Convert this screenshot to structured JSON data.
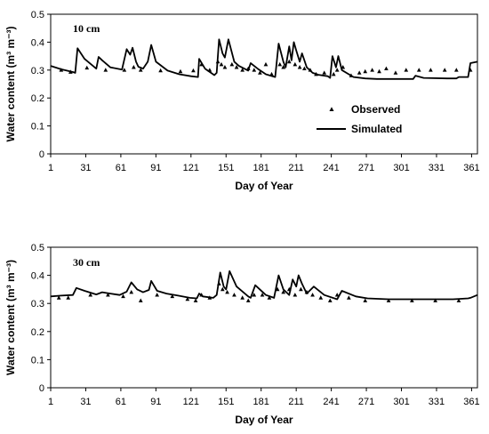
{
  "chart_data": [
    {
      "type": "line",
      "panel_label": "10 cm",
      "xlabel": "Day of Year",
      "ylabel": "Water content (m³ m⁻³)",
      "xlim": [
        1,
        366
      ],
      "ylim": [
        0,
        0.5
      ],
      "xticks": [
        1,
        31,
        61,
        91,
        121,
        151,
        181,
        211,
        241,
        271,
        301,
        331,
        361
      ],
      "xtick_labels": [
        "1",
        "31",
        "61",
        "91",
        "121",
        "151",
        "181",
        "211",
        "241",
        "271",
        "301",
        "331",
        "361"
      ],
      "yticks": [
        0,
        0.1,
        0.2,
        0.3,
        0.4,
        0.5
      ],
      "ytick_labels": [
        "0",
        "0.1",
        "0.2",
        "0.3",
        "0.4",
        "0.5"
      ],
      "legend": {
        "position": "inside-right",
        "entries": [
          {
            "label": "Observed",
            "marker": "triangle"
          },
          {
            "label": "Simulated",
            "marker": "line"
          }
        ]
      },
      "series": [
        {
          "name": "Simulated",
          "style": "line",
          "color": "#000000",
          "x": [
            1,
            10,
            20,
            22,
            24,
            30,
            40,
            42,
            45,
            52,
            62,
            66,
            69,
            71,
            74,
            76,
            80,
            84,
            87,
            91,
            101,
            111,
            121,
            127,
            128,
            133,
            141,
            143,
            145,
            148,
            150,
            153,
            158,
            162,
            170,
            172,
            178,
            185,
            193,
            196,
            200,
            202,
            205,
            207,
            209,
            211,
            214,
            216,
            220,
            225,
            230,
            238,
            240,
            242,
            245,
            247,
            250,
            256,
            260,
            270,
            280,
            290,
            300,
            311,
            313,
            320,
            340,
            348,
            350,
            358,
            360,
            366
          ],
          "y": [
            0.315,
            0.303,
            0.293,
            0.29,
            0.378,
            0.34,
            0.305,
            0.347,
            0.335,
            0.31,
            0.302,
            0.375,
            0.355,
            0.38,
            0.33,
            0.312,
            0.305,
            0.33,
            0.39,
            0.33,
            0.298,
            0.285,
            0.278,
            0.275,
            0.34,
            0.305,
            0.282,
            0.29,
            0.41,
            0.36,
            0.345,
            0.41,
            0.33,
            0.315,
            0.298,
            0.325,
            0.305,
            0.285,
            0.275,
            0.395,
            0.33,
            0.31,
            0.385,
            0.335,
            0.4,
            0.37,
            0.33,
            0.36,
            0.31,
            0.29,
            0.283,
            0.278,
            0.272,
            0.35,
            0.31,
            0.35,
            0.3,
            0.285,
            0.275,
            0.27,
            0.268,
            0.268,
            0.268,
            0.268,
            0.28,
            0.272,
            0.27,
            0.27,
            0.275,
            0.275,
            0.325,
            0.33
          ]
        },
        {
          "name": "Observed",
          "style": "triangle",
          "color": "#000000",
          "x": [
            10,
            18,
            32,
            48,
            64,
            72,
            78,
            95,
            112,
            123,
            130,
            137,
            144,
            147,
            150,
            156,
            160,
            165,
            170,
            175,
            180,
            185,
            190,
            197,
            200,
            205,
            210,
            214,
            218,
            223,
            228,
            235,
            243,
            246,
            251,
            258,
            265,
            270,
            276,
            282,
            288,
            296,
            305,
            316,
            326,
            338,
            348,
            360
          ],
          "y": [
            0.3,
            0.293,
            0.308,
            0.3,
            0.3,
            0.31,
            0.3,
            0.298,
            0.295,
            0.298,
            0.32,
            0.3,
            0.33,
            0.32,
            0.31,
            0.32,
            0.31,
            0.3,
            0.305,
            0.3,
            0.29,
            0.32,
            0.285,
            0.32,
            0.31,
            0.33,
            0.32,
            0.31,
            0.305,
            0.3,
            0.285,
            0.29,
            0.285,
            0.3,
            0.31,
            0.28,
            0.29,
            0.295,
            0.3,
            0.295,
            0.305,
            0.29,
            0.3,
            0.3,
            0.3,
            0.3,
            0.3,
            0.3
          ]
        }
      ]
    },
    {
      "type": "line",
      "panel_label": "30 cm",
      "xlabel": "Day of Year",
      "ylabel": "Water content (m³ m⁻³)",
      "xlim": [
        1,
        366
      ],
      "ylim": [
        0,
        0.5
      ],
      "xticks": [
        1,
        31,
        61,
        91,
        121,
        151,
        181,
        211,
        241,
        271,
        301,
        331,
        361
      ],
      "xtick_labels": [
        "1",
        "31",
        "61",
        "91",
        "121",
        "151",
        "181",
        "211",
        "241",
        "271",
        "301",
        "331",
        "361"
      ],
      "yticks": [
        0,
        0.1,
        0.2,
        0.3,
        0.4,
        0.5
      ],
      "ytick_labels": [
        "0",
        "0.1",
        "0.2",
        "0.3",
        "0.4",
        "0.5"
      ],
      "series": [
        {
          "name": "Simulated",
          "style": "line",
          "color": "#000000",
          "x": [
            1,
            10,
            20,
            23,
            30,
            40,
            45,
            52,
            60,
            66,
            70,
            75,
            80,
            85,
            87,
            92,
            100,
            110,
            120,
            126,
            128,
            131,
            140,
            143,
            146,
            149,
            151,
            154,
            160,
            170,
            172,
            176,
            185,
            192,
            196,
            200,
            205,
            208,
            211,
            213,
            216,
            220,
            226,
            235,
            246,
            250,
            262,
            272,
            290,
            320,
            345,
            358,
            360,
            366
          ],
          "y": [
            0.325,
            0.328,
            0.33,
            0.355,
            0.345,
            0.332,
            0.34,
            0.335,
            0.33,
            0.342,
            0.375,
            0.35,
            0.34,
            0.348,
            0.38,
            0.345,
            0.335,
            0.328,
            0.32,
            0.318,
            0.335,
            0.325,
            0.32,
            0.33,
            0.41,
            0.36,
            0.35,
            0.415,
            0.36,
            0.325,
            0.32,
            0.365,
            0.33,
            0.32,
            0.4,
            0.35,
            0.33,
            0.385,
            0.36,
            0.4,
            0.37,
            0.335,
            0.36,
            0.33,
            0.315,
            0.345,
            0.325,
            0.318,
            0.315,
            0.315,
            0.315,
            0.318,
            0.32,
            0.33
          ]
        },
        {
          "name": "Observed",
          "style": "triangle",
          "color": "#000000",
          "x": [
            8,
            16,
            35,
            50,
            63,
            70,
            78,
            92,
            105,
            118,
            125,
            130,
            137,
            145,
            148,
            152,
            158,
            165,
            170,
            175,
            182,
            188,
            195,
            200,
            205,
            210,
            215,
            220,
            225,
            232,
            240,
            246,
            256,
            270,
            290,
            310,
            330,
            350
          ],
          "y": [
            0.32,
            0.32,
            0.33,
            0.33,
            0.325,
            0.34,
            0.31,
            0.33,
            0.325,
            0.315,
            0.31,
            0.33,
            0.32,
            0.37,
            0.35,
            0.34,
            0.33,
            0.32,
            0.31,
            0.33,
            0.33,
            0.32,
            0.35,
            0.34,
            0.35,
            0.33,
            0.35,
            0.34,
            0.33,
            0.32,
            0.31,
            0.33,
            0.32,
            0.31,
            0.31,
            0.31,
            0.31,
            0.31
          ]
        }
      ]
    }
  ]
}
